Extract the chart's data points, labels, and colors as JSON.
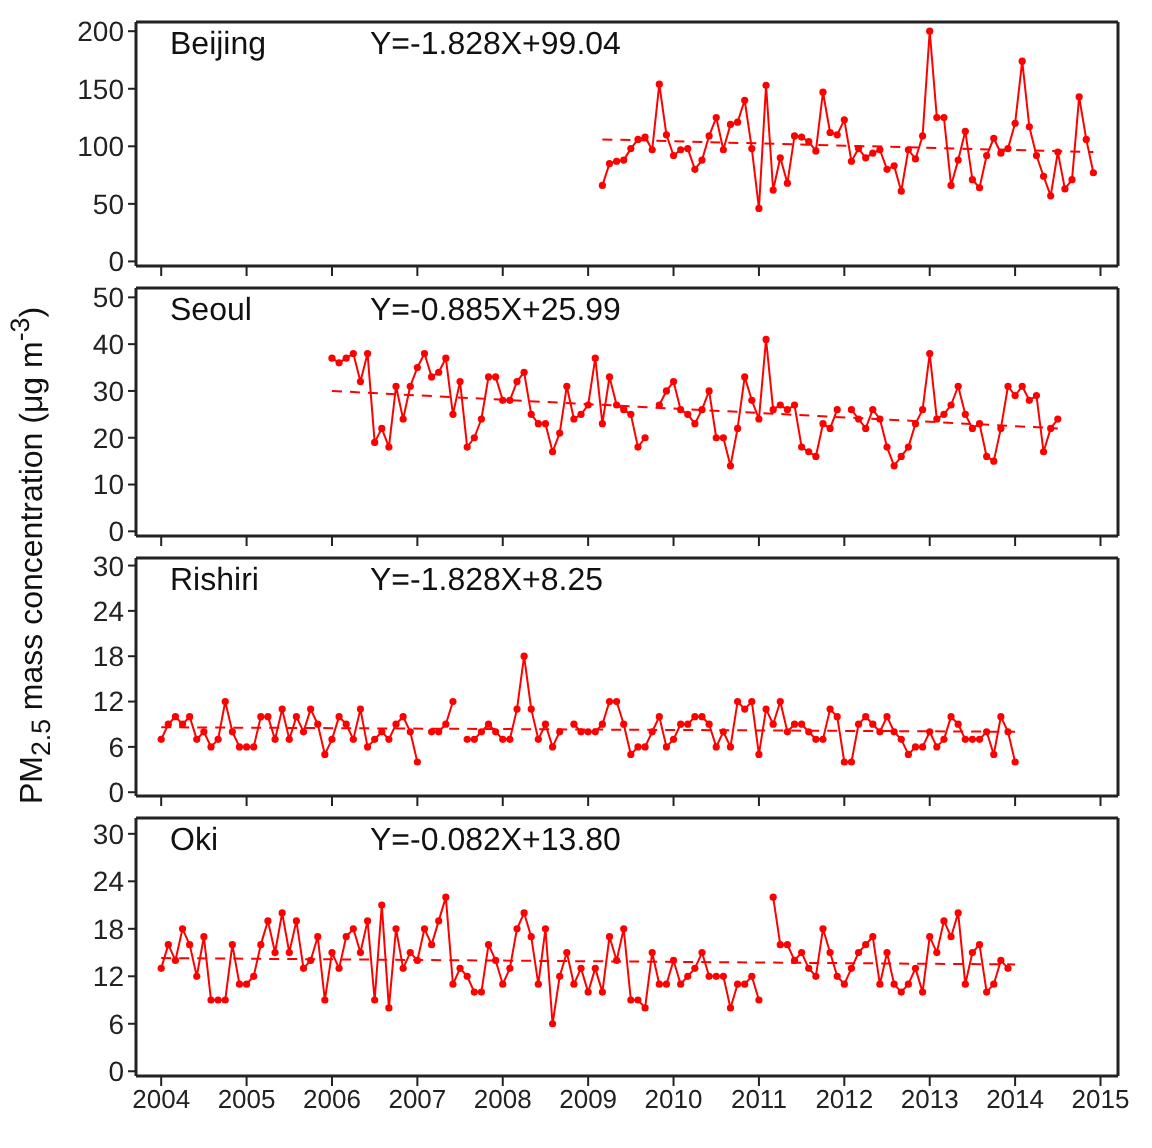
{
  "chart_data": [
    {
      "type": "line",
      "ylabel": "PM$_{2.5}$ mass concentration (μg m$^{-3}$)",
      "annotations": [
        "Beijing",
        "Y=-1.828X+99.04"
      ],
      "xlim": [
        "2003-09-15",
        "2015-03-15"
      ],
      "xticks": [
        "2004",
        "2005",
        "2006",
        "2007",
        "2008",
        "2009",
        "2010",
        "2011",
        "2012",
        "2013",
        "2014",
        "2015"
      ],
      "ylim": [
        -4,
        208
      ],
      "yticks": [
        0,
        50,
        100,
        150,
        200
      ],
      "tick_labels": "y",
      "marker": "circle",
      "series": [
        {
          "color": "#ff0000",
          "x": [
            "2009-03",
            "2009-04",
            "2009-05",
            "2009-06",
            "2009-07",
            "2009-08",
            "2009-09",
            "2009-10",
            "2009-11",
            "2009-12",
            "2010-01",
            "2010-02",
            "2010-03",
            "2010-04",
            "2010-05",
            "2010-06",
            "2010-07",
            "2010-08",
            "2010-09",
            "2010-10",
            "2010-11",
            "2010-12",
            "2011-01",
            "2011-02",
            "2011-03",
            "2011-04",
            "2011-05",
            "2011-06",
            "2011-07",
            "2011-08",
            "2011-09",
            "2011-10",
            "2011-11",
            "2011-12",
            "2012-01",
            "2012-02",
            "2012-03",
            "2012-04",
            "2012-05",
            "2012-06",
            "2012-07",
            "2012-08",
            "2012-09",
            "2012-10",
            "2012-11",
            "2012-12",
            "2013-01",
            "2013-02",
            "2013-03",
            "2013-04",
            "2013-05",
            "2013-06",
            "2013-07",
            "2013-08",
            "2013-09",
            "2013-10",
            "2013-11",
            "2013-12",
            "2014-01",
            "2014-02",
            "2014-03",
            "2014-04",
            "2014-05",
            "2014-06",
            "2014-07",
            "2014-08",
            "2014-09",
            "2014-10",
            "2014-11",
            "2014-12"
          ],
          "values": [
            66,
            85,
            87,
            88,
            98,
            106,
            108,
            97,
            154,
            110,
            92,
            97,
            98,
            80,
            88,
            109,
            125,
            97,
            119,
            121,
            140,
            98,
            46,
            153,
            62,
            90,
            68,
            109,
            108,
            104,
            96,
            147,
            112,
            110,
            123,
            87,
            98,
            90,
            94,
            97,
            80,
            83,
            61,
            97,
            89,
            109,
            200,
            125,
            125,
            66,
            88,
            113,
            71,
            64,
            92,
            107,
            94,
            98,
            120,
            174,
            117,
            92,
            74,
            57,
            95,
            63,
            71,
            143,
            106,
            77
          ]
        },
        {
          "type": "line",
          "color": "#ff0000",
          "marker": "none",
          "line_style": "dashed",
          "x": [
            "2009-03",
            "2014-12"
          ],
          "values": [
            106,
            95
          ]
        }
      ]
    },
    {
      "type": "line",
      "annotations": [
        "Seoul",
        "Y=-0.885X+25.99"
      ],
      "xlim": [
        "2003-09-15",
        "2015-03-15"
      ],
      "xticks": [
        "2004",
        "2005",
        "2006",
        "2007",
        "2008",
        "2009",
        "2010",
        "2011",
        "2012",
        "2013",
        "2014",
        "2015"
      ],
      "ylim": [
        -1,
        52
      ],
      "yticks": [
        0,
        10,
        20,
        30,
        40,
        50
      ],
      "tick_labels": "y",
      "marker": "circle",
      "series": [
        {
          "color": "#ff0000",
          "x": [
            "2006-01",
            "2006-02",
            "2006-03",
            "2006-04",
            "2006-05",
            "2006-06",
            "2006-07",
            "2006-08",
            "2006-09",
            "2006-10",
            "2006-11",
            "2006-12",
            "2007-01",
            "2007-02",
            "2007-03",
            "2007-04",
            "2007-05",
            "2007-06",
            "2007-07",
            "2007-08",
            "2007-09",
            "2007-10",
            "2007-11",
            "2007-12",
            "2008-01",
            "2008-02",
            "2008-03",
            "2008-04",
            "2008-05",
            "2008-06",
            "2008-07",
            "2008-08",
            "2008-09",
            "2008-10",
            "2008-11",
            "2008-12",
            "2009-01",
            "2009-02",
            "2009-03",
            "2009-04",
            "2009-05",
            "2009-06",
            "2009-07",
            "2009-08",
            "2009-09",
            "2009-10",
            "2009-11",
            "2009-12",
            "2010-01",
            "2010-02",
            "2010-03",
            "2010-04",
            "2010-05",
            "2010-06",
            "2010-07",
            "2010-08",
            "2010-09",
            "2010-10",
            "2010-11",
            "2010-12",
            "2011-01",
            "2011-02",
            "2011-03",
            "2011-04",
            "2011-05",
            "2011-06",
            "2011-07",
            "2011-08",
            "2011-09",
            "2011-10",
            "2011-11",
            "2011-12",
            "2012-01",
            "2012-02",
            "2012-03",
            "2012-04",
            "2012-05",
            "2012-06",
            "2012-07",
            "2012-08",
            "2012-09",
            "2012-10",
            "2012-11",
            "2012-12",
            "2013-01",
            "2013-02",
            "2013-03",
            "2013-04",
            "2013-05",
            "2013-06",
            "2013-07",
            "2013-08",
            "2013-09",
            "2013-10",
            "2013-11",
            "2013-12",
            "2014-01",
            "2014-02",
            "2014-03",
            "2014-04",
            "2014-05",
            "2014-06",
            "2014-07"
          ],
          "values": [
            37,
            36,
            37,
            38,
            32,
            38,
            19,
            22,
            18,
            31,
            24,
            31,
            35,
            38,
            33,
            34,
            37,
            25,
            32,
            18,
            20,
            24,
            33,
            33,
            28,
            28,
            32,
            34,
            25,
            23,
            23,
            17,
            21,
            31,
            24,
            25,
            27,
            37,
            23,
            33,
            27,
            26,
            25,
            18,
            20,
            null,
            27,
            30,
            32,
            26,
            25,
            23,
            26,
            30,
            20,
            20,
            14,
            22,
            33,
            28,
            24,
            41,
            26,
            27,
            26,
            27,
            18,
            17,
            16,
            23,
            22,
            26,
            null,
            26,
            24,
            22,
            26,
            24,
            18,
            14,
            16,
            18,
            23,
            26,
            38,
            24,
            25,
            27,
            31,
            25,
            22,
            23,
            16,
            15,
            22,
            31,
            29,
            31,
            28,
            29,
            17,
            22,
            24
          ]
        },
        {
          "type": "line",
          "color": "#ff0000",
          "marker": "none",
          "line_style": "dashed",
          "x": [
            "2006-01",
            "2014-07"
          ],
          "values": [
            30,
            22
          ]
        }
      ]
    },
    {
      "type": "line",
      "annotations": [
        "Rishiri",
        "Y=-1.828X+8.25"
      ],
      "xlim": [
        "2003-09-15",
        "2015-03-15"
      ],
      "xticks": [
        "2004",
        "2005",
        "2006",
        "2007",
        "2008",
        "2009",
        "2010",
        "2011",
        "2012",
        "2013",
        "2014",
        "2015"
      ],
      "ylim": [
        -0.5,
        31
      ],
      "yticks": [
        0,
        6,
        12,
        18,
        24,
        30
      ],
      "tick_labels": "y",
      "marker": "circle",
      "series": [
        {
          "color": "#ff0000",
          "x": [
            "2004-01",
            "2004-02",
            "2004-03",
            "2004-04",
            "2004-05",
            "2004-06",
            "2004-07",
            "2004-08",
            "2004-09",
            "2004-10",
            "2004-11",
            "2004-12",
            "2005-01",
            "2005-02",
            "2005-03",
            "2005-04",
            "2005-05",
            "2005-06",
            "2005-07",
            "2005-08",
            "2005-09",
            "2005-10",
            "2005-11",
            "2005-12",
            "2006-01",
            "2006-02",
            "2006-03",
            "2006-04",
            "2006-05",
            "2006-06",
            "2006-07",
            "2006-08",
            "2006-09",
            "2006-10",
            "2006-11",
            "2006-12",
            "2007-01",
            "2007-02",
            "2007-03",
            "2007-04",
            "2007-05",
            "2007-06",
            "2007-07",
            "2007-08",
            "2007-09",
            "2007-10",
            "2007-11",
            "2007-12",
            "2008-01",
            "2008-02",
            "2008-03",
            "2008-04",
            "2008-05",
            "2008-06",
            "2008-07",
            "2008-08",
            "2008-09",
            "2008-10",
            "2008-11",
            "2008-12",
            "2009-01",
            "2009-02",
            "2009-03",
            "2009-04",
            "2009-05",
            "2009-06",
            "2009-07",
            "2009-08",
            "2009-09",
            "2009-10",
            "2009-11",
            "2009-12",
            "2010-01",
            "2010-02",
            "2010-03",
            "2010-04",
            "2010-05",
            "2010-06",
            "2010-07",
            "2010-08",
            "2010-09",
            "2010-10",
            "2010-11",
            "2010-12",
            "2011-01",
            "2011-02",
            "2011-03",
            "2011-04",
            "2011-05",
            "2011-06",
            "2011-07",
            "2011-08",
            "2011-09",
            "2011-10",
            "2011-11",
            "2011-12",
            "2012-01",
            "2012-02",
            "2012-03",
            "2012-04",
            "2012-05",
            "2012-06",
            "2012-07",
            "2012-08",
            "2012-09",
            "2012-10",
            "2012-11",
            "2012-12",
            "2013-01",
            "2013-02",
            "2013-03",
            "2013-04",
            "2013-05",
            "2013-06",
            "2013-07",
            "2013-08",
            "2013-09",
            "2013-10",
            "2013-11",
            "2013-12",
            "2014-01"
          ],
          "values": [
            7,
            9,
            10,
            9,
            10,
            7,
            8,
            6,
            7,
            12,
            8,
            6,
            6,
            6,
            10,
            10,
            7,
            11,
            7,
            10,
            8,
            11,
            9,
            5,
            7,
            10,
            9,
            7,
            11,
            6,
            7,
            8,
            7,
            9,
            10,
            8,
            4,
            null,
            8,
            8,
            9,
            12,
            null,
            7,
            7,
            8,
            9,
            8,
            7,
            7,
            11,
            18,
            11,
            7,
            9,
            6,
            8,
            null,
            9,
            8,
            8,
            8,
            9,
            12,
            12,
            9,
            5,
            6,
            6,
            8,
            10,
            6,
            7,
            9,
            9,
            10,
            10,
            9,
            6,
            8,
            6,
            12,
            11,
            12,
            5,
            11,
            9,
            12,
            8,
            9,
            9,
            8,
            7,
            7,
            11,
            10,
            4,
            4,
            9,
            10,
            9,
            8,
            10,
            8,
            7,
            5,
            6,
            6,
            8,
            6,
            7,
            10,
            9,
            7,
            7,
            7,
            8,
            5,
            10,
            8,
            4
          ]
        },
        {
          "type": "line",
          "color": "#ff0000",
          "marker": "none",
          "line_style": "dashed",
          "x": [
            "2004-01",
            "2014-01"
          ],
          "values": [
            8.6,
            8
          ]
        }
      ]
    },
    {
      "type": "line",
      "annotations": [
        "Oki",
        "Y=-0.082X+13.80"
      ],
      "xlim": [
        "2003-09-15",
        "2015-03-15"
      ],
      "xticks": [
        "2004",
        "2005",
        "2006",
        "2007",
        "2008",
        "2009",
        "2010",
        "2011",
        "2012",
        "2013",
        "2014",
        "2015"
      ],
      "ylim": [
        -0.6,
        32
      ],
      "yticks": [
        0,
        6,
        12,
        18,
        24,
        30
      ],
      "marker": "circle",
      "series": [
        {
          "color": "#ff0000",
          "x": [
            "2004-01",
            "2004-02",
            "2004-03",
            "2004-04",
            "2004-05",
            "2004-06",
            "2004-07",
            "2004-08",
            "2004-09",
            "2004-10",
            "2004-11",
            "2004-12",
            "2005-01",
            "2005-02",
            "2005-03",
            "2005-04",
            "2005-05",
            "2005-06",
            "2005-07",
            "2005-08",
            "2005-09",
            "2005-10",
            "2005-11",
            "2005-12",
            "2006-01",
            "2006-02",
            "2006-03",
            "2006-04",
            "2006-05",
            "2006-06",
            "2006-07",
            "2006-08",
            "2006-09",
            "2006-10",
            "2006-11",
            "2006-12",
            "2007-01",
            "2007-02",
            "2007-03",
            "2007-04",
            "2007-05",
            "2007-06",
            "2007-07",
            "2007-08",
            "2007-09",
            "2007-10",
            "2007-11",
            "2007-12",
            "2008-01",
            "2008-02",
            "2008-03",
            "2008-04",
            "2008-05",
            "2008-06",
            "2008-07",
            "2008-08",
            "2008-09",
            "2008-10",
            "2008-11",
            "2008-12",
            "2009-01",
            "2009-02",
            "2009-03",
            "2009-04",
            "2009-05",
            "2009-06",
            "2009-07",
            "2009-08",
            "2009-09",
            "2009-10",
            "2009-11",
            "2009-12",
            "2010-01",
            "2010-02",
            "2010-03",
            "2010-04",
            "2010-05",
            "2010-06",
            "2010-07",
            "2010-08",
            "2010-09",
            "2010-10",
            "2010-11",
            "2010-12",
            "2011-01",
            "2011-02",
            "2011-03",
            "2011-04",
            "2011-05",
            "2011-06",
            "2011-07",
            "2011-08",
            "2011-09",
            "2011-10",
            "2011-11",
            "2011-12",
            "2012-01",
            "2012-02",
            "2012-03",
            "2012-04",
            "2012-05",
            "2012-06",
            "2012-07",
            "2012-08",
            "2012-09",
            "2012-10",
            "2012-11",
            "2012-12",
            "2013-01",
            "2013-02",
            "2013-03",
            "2013-04",
            "2013-05",
            "2013-06",
            "2013-07",
            "2013-08",
            "2013-09",
            "2013-10",
            "2013-11",
            "2013-12"
          ],
          "values": [
            13,
            16,
            14,
            18,
            16,
            12,
            17,
            9,
            9,
            9,
            16,
            11,
            11,
            12,
            16,
            19,
            15,
            20,
            15,
            19,
            13,
            14,
            17,
            9,
            15,
            13,
            17,
            18,
            15,
            19,
            9,
            21,
            8,
            18,
            13,
            15,
            14,
            18,
            16,
            19,
            22,
            11,
            13,
            12,
            10,
            10,
            16,
            14,
            11,
            13,
            18,
            20,
            17,
            11,
            18,
            6,
            12,
            15,
            11,
            13,
            10,
            13,
            10,
            17,
            14,
            18,
            9,
            9,
            8,
            15,
            11,
            11,
            14,
            11,
            12,
            13,
            15,
            12,
            12,
            12,
            8,
            11,
            11,
            12,
            9,
            null,
            22,
            16,
            16,
            14,
            15,
            13,
            12,
            18,
            15,
            12,
            11,
            13,
            15,
            16,
            17,
            11,
            15,
            11,
            10,
            11,
            13,
            10,
            17,
            15,
            19,
            17,
            20,
            11,
            15,
            16,
            10,
            11,
            14,
            13
          ]
        },
        {
          "type": "line",
          "color": "#ff0000",
          "marker": "none",
          "line_style": "dashed",
          "x": [
            "2004-01",
            "2014-01"
          ],
          "values": [
            14.3,
            13.5
          ]
        }
      ]
    }
  ]
}
